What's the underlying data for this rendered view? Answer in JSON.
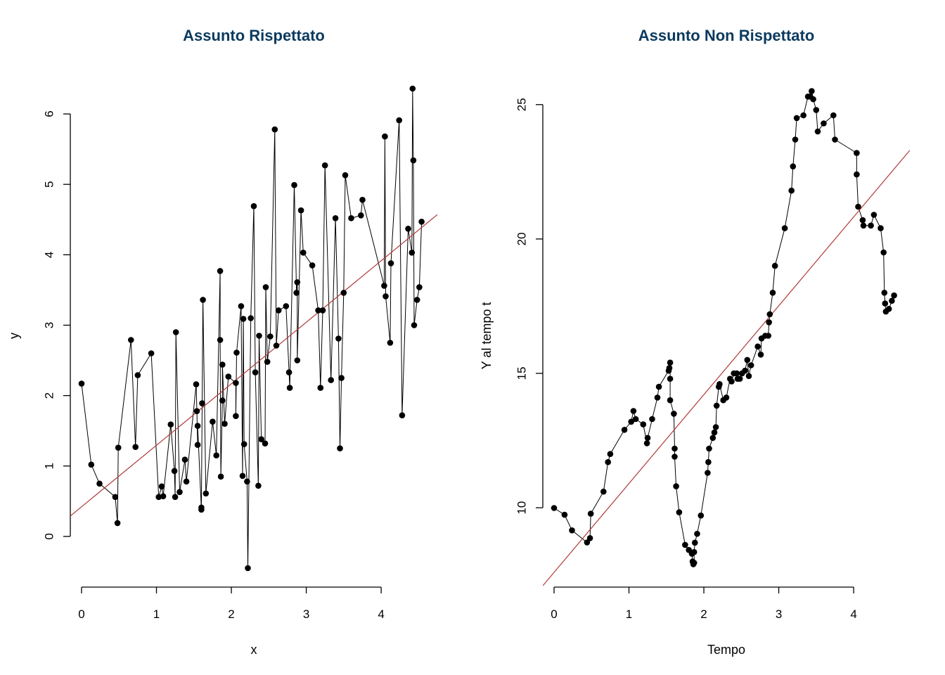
{
  "colors": {
    "title": "#0b3a5e",
    "points": "#000000",
    "fit_line": "#b03a3a"
  },
  "chart_data": [
    {
      "type": "scatter",
      "title": "Assunto Rispettato",
      "xlabel": "x",
      "ylabel": "y",
      "xlim": [
        -0.15,
        4.75
      ],
      "ylim": [
        -0.7,
        6.4
      ],
      "xticks": [
        0,
        1,
        2,
        3,
        4
      ],
      "yticks": [
        0,
        1,
        2,
        3,
        4,
        5,
        6
      ],
      "connect_points": true,
      "fit_line": {
        "x": [
          -0.15,
          4.75
        ],
        "y": [
          0.29,
          4.57
        ]
      },
      "points": [
        [
          0.0,
          2.17
        ],
        [
          0.13,
          1.02
        ],
        [
          0.24,
          0.75
        ],
        [
          0.45,
          0.56
        ],
        [
          0.48,
          0.19
        ],
        [
          0.49,
          1.26
        ],
        [
          0.66,
          2.79
        ],
        [
          0.72,
          1.27
        ],
        [
          0.75,
          2.29
        ],
        [
          0.93,
          2.6
        ],
        [
          1.03,
          0.56
        ],
        [
          1.07,
          0.71
        ],
        [
          1.09,
          0.57
        ],
        [
          1.19,
          1.59
        ],
        [
          1.24,
          0.93
        ],
        [
          1.25,
          0.56
        ],
        [
          1.26,
          2.9
        ],
        [
          1.31,
          0.63
        ],
        [
          1.38,
          1.09
        ],
        [
          1.4,
          0.78
        ],
        [
          1.53,
          2.16
        ],
        [
          1.54,
          1.78
        ],
        [
          1.55,
          1.3
        ],
        [
          1.55,
          1.57
        ],
        [
          1.6,
          0.38
        ],
        [
          1.6,
          0.41
        ],
        [
          1.61,
          1.89
        ],
        [
          1.62,
          3.36
        ],
        [
          1.66,
          0.61
        ],
        [
          1.75,
          1.63
        ],
        [
          1.8,
          1.15
        ],
        [
          1.85,
          3.77
        ],
        [
          1.85,
          2.79
        ],
        [
          1.86,
          0.85
        ],
        [
          1.88,
          1.93
        ],
        [
          1.88,
          2.44
        ],
        [
          1.91,
          1.6
        ],
        [
          1.96,
          2.27
        ],
        [
          2.06,
          2.18
        ],
        [
          2.06,
          1.71
        ],
        [
          2.07,
          2.61
        ],
        [
          2.13,
          3.27
        ],
        [
          2.15,
          0.86
        ],
        [
          2.16,
          3.09
        ],
        [
          2.17,
          1.31
        ],
        [
          2.21,
          0.78
        ],
        [
          2.22,
          -0.45
        ],
        [
          2.26,
          3.1
        ],
        [
          2.3,
          4.69
        ],
        [
          2.32,
          2.33
        ],
        [
          2.36,
          0.72
        ],
        [
          2.37,
          2.85
        ],
        [
          2.4,
          1.38
        ],
        [
          2.45,
          1.32
        ],
        [
          2.46,
          3.54
        ],
        [
          2.48,
          2.48
        ],
        [
          2.52,
          2.84
        ],
        [
          2.58,
          5.78
        ],
        [
          2.6,
          2.71
        ],
        [
          2.63,
          3.21
        ],
        [
          2.73,
          3.27
        ],
        [
          2.77,
          2.33
        ],
        [
          2.78,
          2.11
        ],
        [
          2.84,
          4.99
        ],
        [
          2.87,
          3.46
        ],
        [
          2.88,
          3.61
        ],
        [
          2.88,
          2.5
        ],
        [
          2.93,
          4.63
        ],
        [
          2.96,
          4.03
        ],
        [
          3.08,
          3.85
        ],
        [
          3.16,
          3.21
        ],
        [
          3.19,
          2.11
        ],
        [
          3.22,
          3.21
        ],
        [
          3.25,
          5.27
        ],
        [
          3.33,
          2.22
        ],
        [
          3.39,
          4.52
        ],
        [
          3.43,
          2.81
        ],
        [
          3.45,
          1.25
        ],
        [
          3.47,
          2.25
        ],
        [
          3.5,
          3.46
        ],
        [
          3.52,
          5.13
        ],
        [
          3.6,
          4.52
        ],
        [
          3.73,
          4.56
        ],
        [
          3.75,
          4.78
        ],
        [
          4.04,
          3.56
        ],
        [
          4.05,
          5.68
        ],
        [
          4.06,
          3.41
        ],
        [
          4.12,
          2.75
        ],
        [
          4.13,
          3.88
        ],
        [
          4.24,
          5.91
        ],
        [
          4.28,
          1.72
        ],
        [
          4.36,
          4.37
        ],
        [
          4.41,
          4.03
        ],
        [
          4.42,
          6.36
        ],
        [
          4.43,
          5.34
        ],
        [
          4.44,
          3.0
        ],
        [
          4.48,
          3.36
        ],
        [
          4.51,
          3.54
        ],
        [
          4.54,
          4.47
        ]
      ]
    },
    {
      "type": "scatter",
      "title": "Assunto Non Rispettato",
      "xlabel": "Tempo",
      "ylabel": "Y al tempo t",
      "xlim": [
        -0.15,
        4.75
      ],
      "ylim": [
        7.1,
        25.7
      ],
      "xticks": [
        0,
        1,
        2,
        3,
        4
      ],
      "yticks": [
        10,
        15,
        20,
        25
      ],
      "connect_points": true,
      "fit_line": {
        "x": [
          -0.15,
          4.75
        ],
        "y": [
          7.1,
          23.3
        ]
      },
      "points": [
        [
          0.0,
          9.99
        ],
        [
          0.14,
          9.74
        ],
        [
          0.24,
          9.16
        ],
        [
          0.44,
          8.71
        ],
        [
          0.48,
          8.87
        ],
        [
          0.49,
          9.78
        ],
        [
          0.66,
          10.6
        ],
        [
          0.72,
          11.7
        ],
        [
          0.75,
          12.0
        ],
        [
          0.94,
          12.9
        ],
        [
          1.03,
          13.2
        ],
        [
          1.06,
          13.6
        ],
        [
          1.09,
          13.3
        ],
        [
          1.19,
          13.1
        ],
        [
          1.24,
          12.4
        ],
        [
          1.25,
          12.6
        ],
        [
          1.31,
          13.3
        ],
        [
          1.38,
          14.1
        ],
        [
          1.4,
          14.5
        ],
        [
          1.53,
          15.1
        ],
        [
          1.54,
          15.2
        ],
        [
          1.55,
          15.4
        ],
        [
          1.55,
          14.8
        ],
        [
          1.55,
          14.0
        ],
        [
          1.6,
          13.5
        ],
        [
          1.61,
          12.2
        ],
        [
          1.61,
          11.9
        ],
        [
          1.63,
          10.8
        ],
        [
          1.67,
          9.83
        ],
        [
          1.75,
          8.62
        ],
        [
          1.8,
          8.43
        ],
        [
          1.84,
          8.29
        ],
        [
          1.85,
          8.0
        ],
        [
          1.86,
          7.9
        ],
        [
          1.87,
          7.95
        ],
        [
          1.87,
          8.35
        ],
        [
          1.88,
          8.7
        ],
        [
          1.91,
          9.03
        ],
        [
          1.96,
          9.71
        ],
        [
          2.05,
          11.3
        ],
        [
          2.06,
          11.7
        ],
        [
          2.07,
          12.2
        ],
        [
          2.12,
          12.6
        ],
        [
          2.14,
          12.8
        ],
        [
          2.16,
          13.0
        ],
        [
          2.17,
          13.8
        ],
        [
          2.2,
          14.5
        ],
        [
          2.21,
          14.6
        ],
        [
          2.26,
          14.0
        ],
        [
          2.3,
          14.1
        ],
        [
          2.35,
          14.8
        ],
        [
          2.37,
          14.7
        ],
        [
          2.4,
          15.0
        ],
        [
          2.44,
          15.0
        ],
        [
          2.45,
          14.8
        ],
        [
          2.48,
          14.8
        ],
        [
          2.51,
          15.0
        ],
        [
          2.55,
          15.1
        ],
        [
          2.58,
          15.5
        ],
        [
          2.6,
          14.9
        ],
        [
          2.63,
          15.3
        ],
        [
          2.72,
          16.0
        ],
        [
          2.76,
          15.7
        ],
        [
          2.77,
          16.3
        ],
        [
          2.82,
          16.4
        ],
        [
          2.86,
          16.4
        ],
        [
          2.87,
          16.9
        ],
        [
          2.88,
          17.2
        ],
        [
          2.92,
          18.0
        ],
        [
          2.95,
          19.0
        ],
        [
          3.08,
          20.4
        ],
        [
          3.17,
          21.8
        ],
        [
          3.19,
          22.7
        ],
        [
          3.22,
          23.7
        ],
        [
          3.24,
          24.5
        ],
        [
          3.33,
          24.6
        ],
        [
          3.39,
          25.3
        ],
        [
          3.42,
          25.3
        ],
        [
          3.44,
          25.5
        ],
        [
          3.46,
          25.2
        ],
        [
          3.5,
          24.8
        ],
        [
          3.52,
          24.0
        ],
        [
          3.6,
          24.3
        ],
        [
          3.73,
          24.6
        ],
        [
          3.75,
          23.7
        ],
        [
          4.04,
          23.2
        ],
        [
          4.04,
          22.4
        ],
        [
          4.06,
          21.2
        ],
        [
          4.12,
          20.7
        ],
        [
          4.13,
          20.5
        ],
        [
          4.23,
          20.5
        ],
        [
          4.27,
          20.9
        ],
        [
          4.36,
          20.4
        ],
        [
          4.4,
          19.5
        ],
        [
          4.41,
          18.0
        ],
        [
          4.42,
          17.6
        ],
        [
          4.43,
          17.3
        ],
        [
          4.47,
          17.4
        ],
        [
          4.51,
          17.7
        ],
        [
          4.54,
          17.9
        ]
      ]
    }
  ]
}
